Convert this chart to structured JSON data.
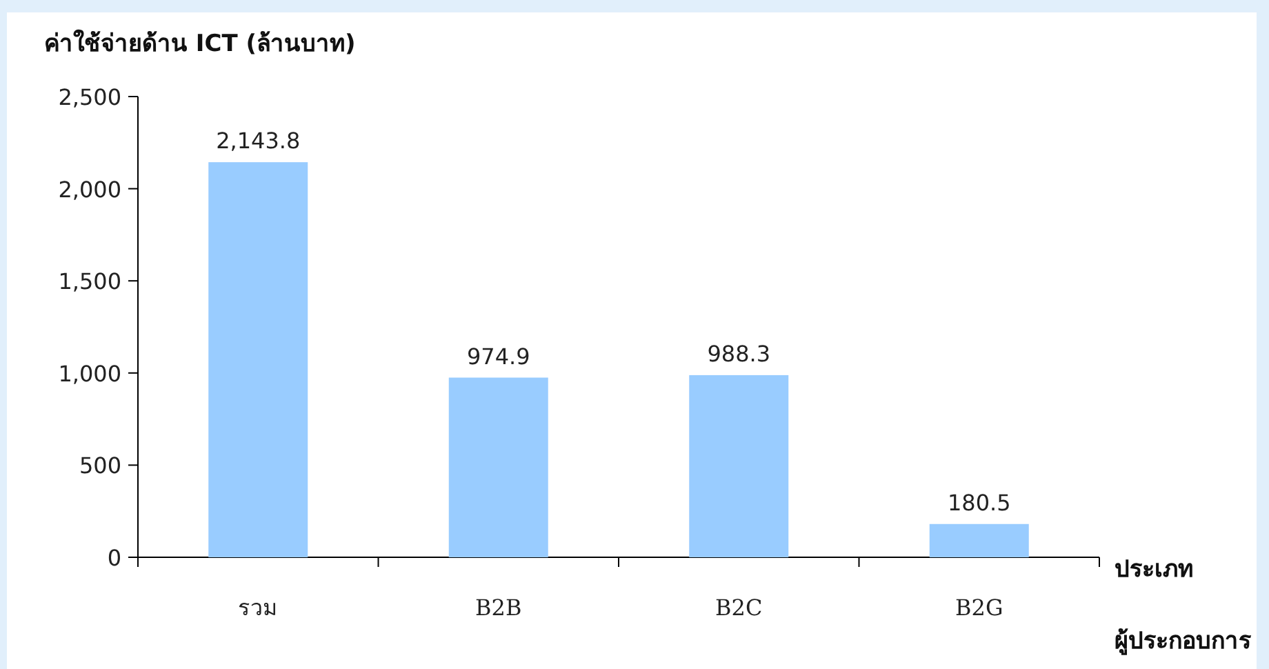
{
  "chart_data": {
    "type": "bar",
    "ylabel": "ค่าใช้จ่ายด้าน ICT (ล้านบาท)",
    "xlabel": "ประเภท\nผู้ประกอบการ",
    "categories": [
      "รวม",
      "B2B",
      "B2C",
      "B2G"
    ],
    "values": [
      2143.8,
      974.9,
      988.3,
      180.5
    ],
    "value_labels": [
      "2,143.8",
      "974.9",
      "988.3",
      "180.5"
    ],
    "color": "#99ccff",
    "ylim": [
      0,
      2500
    ],
    "yticks": [
      {
        "value": 0,
        "label": "0"
      },
      {
        "value": 500,
        "label": "500"
      },
      {
        "value": 1000,
        "label": "1,000"
      },
      {
        "value": 1500,
        "label": "1,500"
      },
      {
        "value": 2000,
        "label": "2,000"
      },
      {
        "value": 2500,
        "label": "2,500"
      }
    ],
    "grid": false
  }
}
